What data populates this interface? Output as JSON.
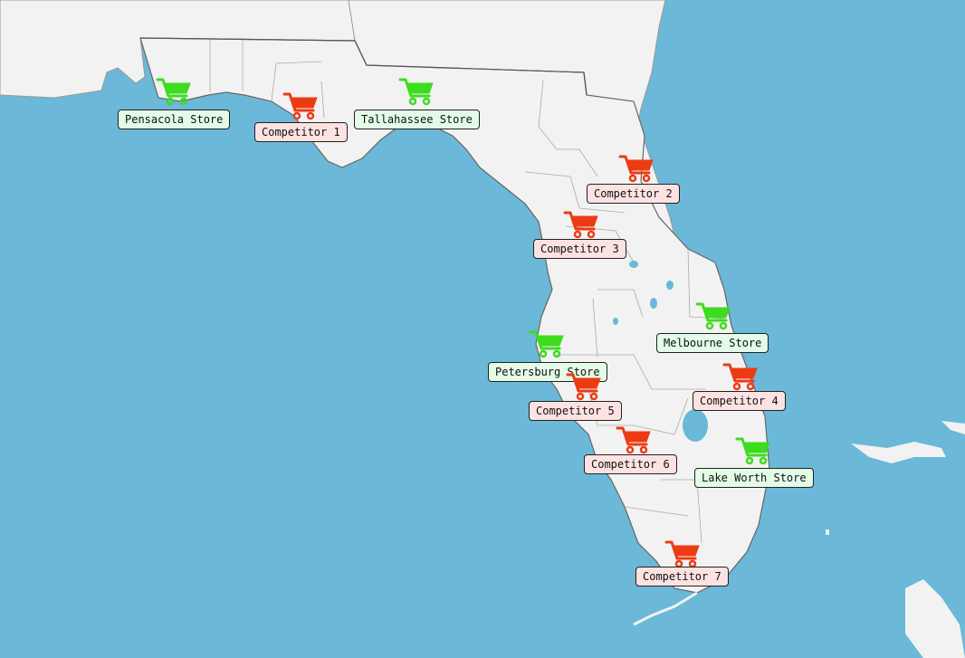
{
  "colors": {
    "water": "#6bb8d8",
    "land": "#f2f2f2",
    "border": "#888888",
    "store": "#3ddc1e",
    "competitor": "#ec3b12"
  },
  "icons": {
    "store": "shopping-cart-icon",
    "competitor": "shopping-cart-icon"
  },
  "markers": [
    {
      "id": "pensacola",
      "type": "store",
      "label": "Pensacola Store"
    },
    {
      "id": "competitor-1",
      "type": "competitor",
      "label": "Competitor 1"
    },
    {
      "id": "tallahassee",
      "type": "store",
      "label": "Tallahassee Store"
    },
    {
      "id": "competitor-2",
      "type": "competitor",
      "label": "Competitor 2"
    },
    {
      "id": "competitor-3",
      "type": "competitor",
      "label": "Competitor 3"
    },
    {
      "id": "melbourne",
      "type": "store",
      "label": "Melbourne Store"
    },
    {
      "id": "petersburg",
      "type": "store",
      "label": "Petersburg Store"
    },
    {
      "id": "competitor-4",
      "type": "competitor",
      "label": "Competitor 4"
    },
    {
      "id": "competitor-5",
      "type": "competitor",
      "label": "Competitor 5"
    },
    {
      "id": "competitor-6",
      "type": "competitor",
      "label": "Competitor 6"
    },
    {
      "id": "lake-worth",
      "type": "store",
      "label": "Lake Worth Store"
    },
    {
      "id": "competitor-7",
      "type": "competitor",
      "label": "Competitor 7"
    }
  ]
}
